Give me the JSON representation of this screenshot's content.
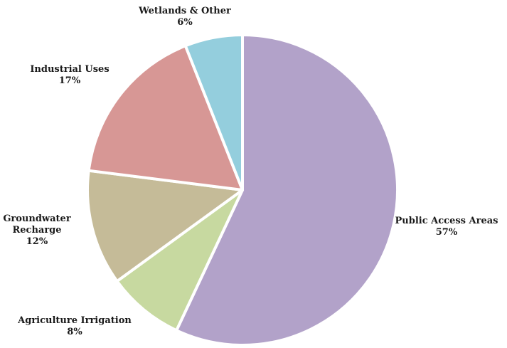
{
  "chart_data": {
    "type": "pie",
    "title": "",
    "slices": [
      {
        "label": "Public Access Areas",
        "label_lines": [
          "Public Access Areas"
        ],
        "value_label": "57%",
        "value": 57,
        "color": "#b2a2c9"
      },
      {
        "label": "Agriculture Irrigation",
        "label_lines": [
          "Agriculture Irrigation"
        ],
        "value_label": "8%",
        "value": 8,
        "color": "#c7d9a0"
      },
      {
        "label": "Groundwater Recharge",
        "label_lines": [
          "Groundwater",
          "Recharge"
        ],
        "value_label": "12%",
        "value": 12,
        "color": "#c5bb98"
      },
      {
        "label": "Industrial Uses",
        "label_lines": [
          "Industrial Uses"
        ],
        "value_label": "17%",
        "value": 17,
        "color": "#d79795"
      },
      {
        "label": "Wetlands & Other",
        "label_lines": [
          "Wetlands & Other"
        ],
        "value_label": "6%",
        "value": 6,
        "color": "#94cedd"
      }
    ],
    "start_angle_deg": 0,
    "direction": "clockwise",
    "legend": "none",
    "data_labels": "outside"
  }
}
